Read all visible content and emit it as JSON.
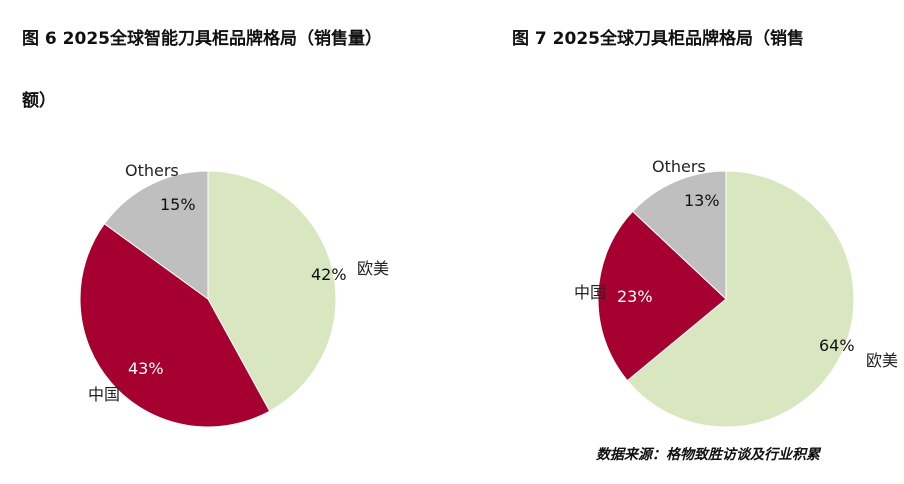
{
  "chart_data": [
    {
      "type": "pie",
      "title": "图 6 2025全球智能刀具柜品牌格局（销售量）",
      "categories": [
        "欧美",
        "中国",
        "Others"
      ],
      "values": [
        42,
        43,
        15
      ],
      "labels": [
        "42%",
        "43%",
        "15%"
      ],
      "colors": [
        "#d9e7c0",
        "#a50030",
        "#bfbfbf"
      ]
    },
    {
      "type": "pie",
      "title": "图 7 2025全球刀具柜品牌格局（销售",
      "title_continued": "额）",
      "categories": [
        "欧美",
        "中国",
        "Others"
      ],
      "values": [
        64,
        23,
        13
      ],
      "labels": [
        "64%",
        "23%",
        "13%"
      ],
      "colors": [
        "#d9e7c0",
        "#a50030",
        "#bfbfbf"
      ]
    }
  ],
  "source": "数据来源：格物致胜访谈及行业积累"
}
